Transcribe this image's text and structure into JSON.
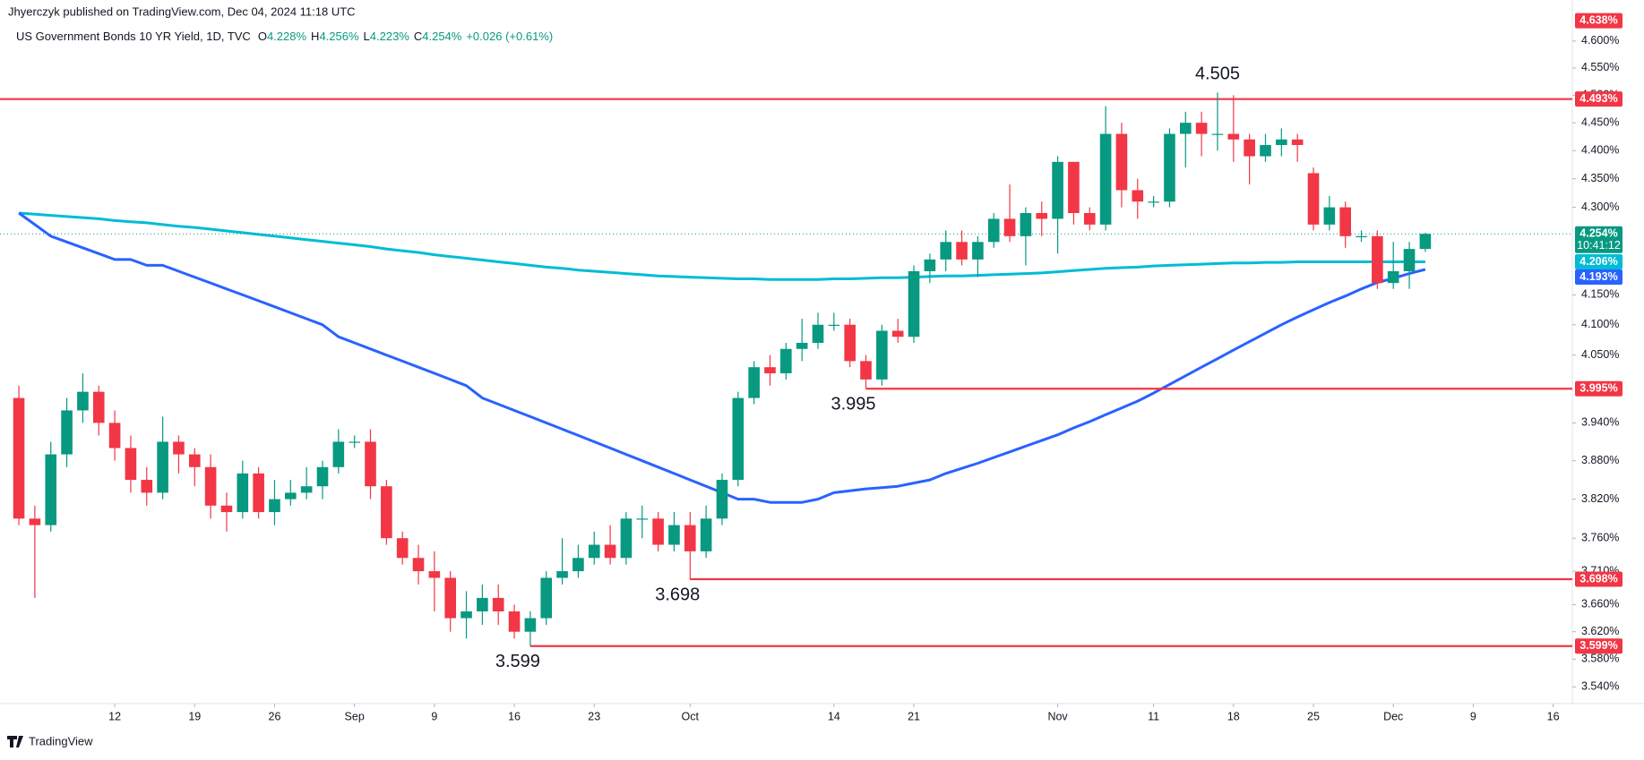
{
  "header": {
    "publisher": "Jhyerczyk published on TradingView.com, Dec 04, 2024 11:18 UTC",
    "symbol": "US Government Bonds 10 YR Yield, 1D, TVC",
    "ohlc": [
      {
        "key": "O",
        "value": 4.228,
        "label": "4.228%"
      },
      {
        "key": "H",
        "value": 4.256,
        "label": "4.256%"
      },
      {
        "key": "L",
        "value": 4.223,
        "label": "4.223%"
      },
      {
        "key": "C",
        "value": 4.254,
        "label": "4.254%"
      }
    ],
    "change": "+0.026 (+0.61%)"
  },
  "chart_data": {
    "type": "candlestick",
    "up_color": "#089981",
    "down_color": "#f23645",
    "open": [
      3.98,
      3.79,
      3.78,
      3.89,
      3.96,
      3.99,
      3.94,
      3.9,
      3.85,
      3.83,
      3.91,
      3.89,
      3.87,
      3.81,
      3.8,
      3.86,
      3.8,
      3.82,
      3.83,
      3.84,
      3.87,
      3.91,
      3.91,
      3.84,
      3.76,
      3.73,
      3.71,
      3.7,
      3.64,
      3.65,
      3.67,
      3.65,
      3.62,
      3.64,
      3.7,
      3.71,
      3.73,
      3.75,
      3.73,
      3.79,
      3.79,
      3.75,
      3.78,
      3.74,
      3.79,
      3.85,
      3.98,
      4.03,
      4.02,
      4.06,
      4.07,
      4.1,
      4.1,
      4.04,
      4.01,
      4.09,
      4.08,
      4.19,
      4.21,
      4.24,
      4.21,
      4.24,
      4.28,
      4.25,
      4.29,
      4.28,
      4.38,
      4.29,
      4.27,
      4.43,
      4.33,
      4.31,
      4.31,
      4.43,
      4.45,
      4.43,
      4.43,
      4.42,
      4.39,
      4.41,
      4.42,
      4.36,
      4.27,
      4.3,
      4.25,
      4.25,
      4.17,
      4.19,
      4.228
    ],
    "high": [
      4.0,
      3.81,
      3.91,
      3.98,
      4.02,
      4.0,
      3.96,
      3.92,
      3.87,
      3.95,
      3.92,
      3.9,
      3.89,
      3.83,
      3.88,
      3.87,
      3.85,
      3.85,
      3.87,
      3.88,
      3.93,
      3.92,
      3.93,
      3.85,
      3.77,
      3.75,
      3.74,
      3.71,
      3.68,
      3.69,
      3.69,
      3.66,
      3.65,
      3.71,
      3.76,
      3.75,
      3.77,
      3.78,
      3.8,
      3.81,
      3.8,
      3.8,
      3.8,
      3.81,
      3.86,
      3.99,
      4.04,
      4.05,
      4.07,
      4.11,
      4.12,
      4.12,
      4.11,
      4.05,
      4.1,
      4.11,
      4.2,
      4.22,
      4.26,
      4.26,
      4.25,
      4.29,
      4.34,
      4.3,
      4.31,
      4.39,
      4.38,
      4.3,
      4.48,
      4.45,
      4.35,
      4.32,
      4.44,
      4.47,
      4.47,
      4.505,
      4.5,
      4.43,
      4.43,
      4.44,
      4.43,
      4.37,
      4.32,
      4.31,
      4.26,
      4.26,
      4.24,
      4.24,
      4.256
    ],
    "low": [
      3.78,
      3.67,
      3.77,
      3.87,
      3.94,
      3.92,
      3.88,
      3.83,
      3.81,
      3.82,
      3.86,
      3.84,
      3.79,
      3.77,
      3.79,
      3.79,
      3.78,
      3.81,
      3.82,
      3.82,
      3.86,
      3.9,
      3.82,
      3.75,
      3.72,
      3.69,
      3.65,
      3.62,
      3.61,
      3.63,
      3.63,
      3.61,
      3.599,
      3.63,
      3.69,
      3.7,
      3.72,
      3.72,
      3.72,
      3.76,
      3.74,
      3.74,
      3.698,
      3.73,
      3.78,
      3.84,
      3.97,
      4.0,
      4.01,
      4.04,
      4.06,
      4.09,
      4.03,
      3.995,
      4.0,
      4.07,
      4.07,
      4.17,
      4.19,
      4.2,
      4.18,
      4.23,
      4.24,
      4.2,
      4.25,
      4.22,
      4.27,
      4.26,
      4.26,
      4.3,
      4.28,
      4.3,
      4.3,
      4.37,
      4.39,
      4.4,
      4.38,
      4.34,
      4.38,
      4.39,
      4.38,
      4.26,
      4.26,
      4.23,
      4.24,
      4.16,
      4.16,
      4.16,
      4.223
    ],
    "close": [
      3.79,
      3.78,
      3.89,
      3.96,
      3.99,
      3.94,
      3.9,
      3.85,
      3.83,
      3.91,
      3.89,
      3.87,
      3.81,
      3.8,
      3.86,
      3.8,
      3.82,
      3.83,
      3.84,
      3.87,
      3.91,
      3.91,
      3.84,
      3.76,
      3.73,
      3.71,
      3.7,
      3.64,
      3.65,
      3.67,
      3.65,
      3.62,
      3.64,
      3.7,
      3.71,
      3.73,
      3.75,
      3.73,
      3.79,
      3.79,
      3.75,
      3.78,
      3.74,
      3.79,
      3.85,
      3.98,
      4.03,
      4.02,
      4.06,
      4.07,
      4.1,
      4.1,
      4.04,
      4.01,
      4.09,
      4.08,
      4.19,
      4.21,
      4.24,
      4.21,
      4.24,
      4.28,
      4.25,
      4.29,
      4.28,
      4.38,
      4.29,
      4.27,
      4.43,
      4.33,
      4.31,
      4.31,
      4.43,
      4.45,
      4.43,
      4.43,
      4.42,
      4.39,
      4.41,
      4.42,
      4.41,
      4.27,
      4.3,
      4.25,
      4.25,
      4.17,
      4.19,
      4.228,
      4.254
    ],
    "series": [
      {
        "color": "#00bcd4",
        "values": [
          4.29,
          4.288,
          4.286,
          4.284,
          4.282,
          4.28,
          4.277,
          4.275,
          4.273,
          4.27,
          4.267,
          4.265,
          4.262,
          4.259,
          4.256,
          4.253,
          4.25,
          4.247,
          4.244,
          4.241,
          4.238,
          4.235,
          4.232,
          4.228,
          4.225,
          4.222,
          4.218,
          4.215,
          4.212,
          4.209,
          4.206,
          4.203,
          4.2,
          4.197,
          4.195,
          4.192,
          4.19,
          4.188,
          4.186,
          4.184,
          4.182,
          4.181,
          4.18,
          4.179,
          4.178,
          4.177,
          4.177,
          4.176,
          4.176,
          4.176,
          4.176,
          4.177,
          4.177,
          4.178,
          4.179,
          4.179,
          4.18,
          4.181,
          4.182,
          4.182,
          4.183,
          4.184,
          4.185,
          4.186,
          4.187,
          4.189,
          4.191,
          4.193,
          4.195,
          4.196,
          4.197,
          4.199,
          4.2,
          4.201,
          4.202,
          4.203,
          4.204,
          4.204,
          4.205,
          4.205,
          4.206,
          4.206,
          4.206,
          4.206,
          4.206,
          4.206,
          4.206,
          4.206,
          4.206
        ]
      },
      {
        "color": "#2962ff",
        "values": [
          4.29,
          4.27,
          4.25,
          4.24,
          4.23,
          4.22,
          4.21,
          4.21,
          4.2,
          4.2,
          4.19,
          4.18,
          4.17,
          4.16,
          4.15,
          4.14,
          4.13,
          4.12,
          4.11,
          4.1,
          4.08,
          4.07,
          4.06,
          4.05,
          4.04,
          4.03,
          4.02,
          4.01,
          4.0,
          3.98,
          3.97,
          3.96,
          3.95,
          3.94,
          3.93,
          3.92,
          3.91,
          3.9,
          3.89,
          3.88,
          3.87,
          3.86,
          3.85,
          3.84,
          3.83,
          3.82,
          3.82,
          3.815,
          3.815,
          3.815,
          3.82,
          3.83,
          3.833,
          3.836,
          3.838,
          3.84,
          3.845,
          3.85,
          3.86,
          3.868,
          3.876,
          3.885,
          3.894,
          3.903,
          3.912,
          3.921,
          3.932,
          3.942,
          3.953,
          3.964,
          3.975,
          3.988,
          4.002,
          4.016,
          4.03,
          4.044,
          4.058,
          4.072,
          4.086,
          4.1,
          4.113,
          4.125,
          4.137,
          4.148,
          4.16,
          4.171,
          4.178,
          4.186,
          4.193
        ]
      }
    ],
    "log": true,
    "ylim": [
      3.516,
      4.64
    ],
    "yticks": [
      {
        "value": 4.6,
        "label": "4.600%"
      },
      {
        "value": 4.55,
        "label": "4.550%"
      },
      {
        "value": 4.5,
        "label": "4.500%"
      },
      {
        "value": 4.45,
        "label": "4.450%"
      },
      {
        "value": 4.4,
        "label": "4.400%"
      },
      {
        "value": 4.35,
        "label": "4.350%"
      },
      {
        "value": 4.3,
        "label": "4.300%"
      },
      {
        "value": 4.15,
        "label": "4.150%"
      },
      {
        "value": 4.1,
        "label": "4.100%"
      },
      {
        "value": 4.05,
        "label": "4.050%"
      },
      {
        "value": 3.94,
        "label": "3.940%"
      },
      {
        "value": 3.88,
        "label": "3.880%"
      },
      {
        "value": 3.82,
        "label": "3.820%"
      },
      {
        "value": 3.76,
        "label": "3.760%"
      },
      {
        "value": 3.71,
        "label": "3.710%"
      },
      {
        "value": 3.66,
        "label": "3.660%"
      },
      {
        "value": 3.62,
        "label": "3.620%"
      },
      {
        "value": 3.58,
        "label": "3.580%"
      },
      {
        "value": 3.54,
        "label": "3.540%"
      }
    ],
    "xlim": [
      -1.18,
      97.2
    ],
    "xticks": [
      {
        "value": 6,
        "label": "12"
      },
      {
        "value": 11,
        "label": "19"
      },
      {
        "value": 16,
        "label": "26"
      },
      {
        "value": 21,
        "label": "Sep"
      },
      {
        "value": 26,
        "label": "9"
      },
      {
        "value": 31,
        "label": "16"
      },
      {
        "value": 36,
        "label": "23"
      },
      {
        "value": 42,
        "label": "Oct"
      },
      {
        "value": 51,
        "label": "14"
      },
      {
        "value": 56,
        "label": "21"
      },
      {
        "value": 65,
        "label": "Nov"
      },
      {
        "value": 71,
        "label": "11"
      },
      {
        "value": 76,
        "label": "18"
      },
      {
        "value": 81,
        "label": "25"
      },
      {
        "value": 86,
        "label": "Dec"
      },
      {
        "value": 91,
        "label": "9"
      },
      {
        "value": 96,
        "label": "16"
      }
    ],
    "hlines": [
      {
        "value": 4.493,
        "color": "#f23645"
      },
      {
        "value": 3.995,
        "start": 53,
        "color": "#f23645"
      },
      {
        "value": 3.698,
        "start": 42,
        "color": "#f23645"
      },
      {
        "value": 3.599,
        "start": 32,
        "color": "#f23645"
      }
    ],
    "last_price": {
      "value": 4.254,
      "color": "#089981"
    },
    "price_labels": [
      {
        "value": 4.638,
        "label": "4.638%",
        "color": "#f23645"
      },
      {
        "value": 4.493,
        "label": "4.493%",
        "color": "#f23645"
      },
      {
        "value": 4.254,
        "label": "4.254%",
        "sublabel": "10:41:12",
        "color": "#089981"
      },
      {
        "value": 4.206,
        "label": "4.206%",
        "color": "#00bcd4"
      },
      {
        "value": 4.193,
        "label": "4.193%",
        "color": "#2962ff"
      },
      {
        "value": 3.995,
        "label": "3.995%",
        "color": "#f23645"
      },
      {
        "value": 3.698,
        "label": "3.698%",
        "color": "#f23645"
      },
      {
        "value": 3.599,
        "label": "3.599%",
        "color": "#f23645"
      }
    ],
    "annotations": [
      {
        "value": 4.505,
        "x": 75,
        "position": "above"
      },
      {
        "value": 3.995,
        "x": 53,
        "position": "below"
      },
      {
        "value": 3.698,
        "x": 42,
        "position": "below"
      },
      {
        "value": 3.599,
        "x": 32,
        "position": "below"
      }
    ]
  },
  "footer": {
    "brand": "TradingView"
  }
}
